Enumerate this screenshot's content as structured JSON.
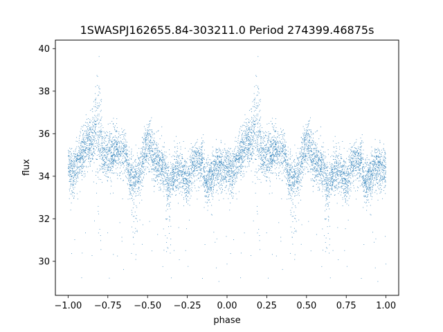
{
  "chart_data": {
    "type": "scatter",
    "title": "1SWASPJ162655.84-303211.0 Period 274399.46875s",
    "xlabel": "phase",
    "ylabel": "flux",
    "xlim": [
      -1.08,
      1.08
    ],
    "ylim": [
      28.4,
      40.4
    ],
    "xticks": [
      -1.0,
      -0.75,
      -0.5,
      -0.25,
      0.0,
      0.25,
      0.5,
      0.75,
      1.0
    ],
    "xtick_labels": [
      "−1.00",
      "−0.75",
      "−0.50",
      "−0.25",
      "0.00",
      "0.25",
      "0.50",
      "0.75",
      "1.00"
    ],
    "yticks": [
      30,
      32,
      34,
      36,
      38,
      40
    ],
    "ytick_labels": [
      "30",
      "32",
      "34",
      "36",
      "38",
      "40"
    ],
    "grid": false,
    "point_color": "#1f77b4",
    "series": [
      {
        "profile": [
          [
            0.0,
            34.4
          ],
          [
            0.03,
            34.2
          ],
          [
            0.06,
            34.6
          ],
          [
            0.09,
            35.1
          ],
          [
            0.12,
            35.6
          ],
          [
            0.15,
            35.4
          ],
          [
            0.18,
            35.8
          ],
          [
            0.21,
            35.0
          ],
          [
            0.24,
            34.9
          ],
          [
            0.27,
            34.7
          ],
          [
            0.3,
            35.3
          ],
          [
            0.33,
            35.1
          ],
          [
            0.36,
            35.0
          ],
          [
            0.39,
            34.0
          ],
          [
            0.42,
            33.8
          ],
          [
            0.45,
            34.1
          ],
          [
            0.48,
            35.3
          ],
          [
            0.51,
            35.5
          ],
          [
            0.54,
            34.7
          ],
          [
            0.57,
            34.6
          ],
          [
            0.6,
            34.5
          ],
          [
            0.63,
            33.6
          ],
          [
            0.66,
            33.9
          ],
          [
            0.69,
            34.3
          ],
          [
            0.72,
            34.2
          ],
          [
            0.75,
            33.7
          ],
          [
            0.78,
            34.5
          ],
          [
            0.81,
            34.6
          ],
          [
            0.84,
            34.8
          ],
          [
            0.87,
            33.7
          ],
          [
            0.9,
            33.8
          ],
          [
            0.93,
            34.6
          ],
          [
            0.96,
            34.3
          ],
          [
            1.0,
            34.4
          ]
        ],
        "spikes": [
          {
            "phase": 0.19,
            "width": 0.025,
            "height": 3.2
          },
          {
            "phase": 0.155,
            "width": 0.02,
            "height": 1.2
          },
          {
            "phase": 0.26,
            "width": 0.02,
            "height": 0.8
          }
        ],
        "dips": [
          {
            "phase": 0.42,
            "width": 0.02,
            "depth": 3.0
          },
          {
            "phase": 0.19,
            "width": 0.015,
            "depth": 4.3
          },
          {
            "phase": 0.63,
            "width": 0.02,
            "depth": 2.5
          }
        ],
        "points_per_cycle": 4200
      }
    ]
  }
}
